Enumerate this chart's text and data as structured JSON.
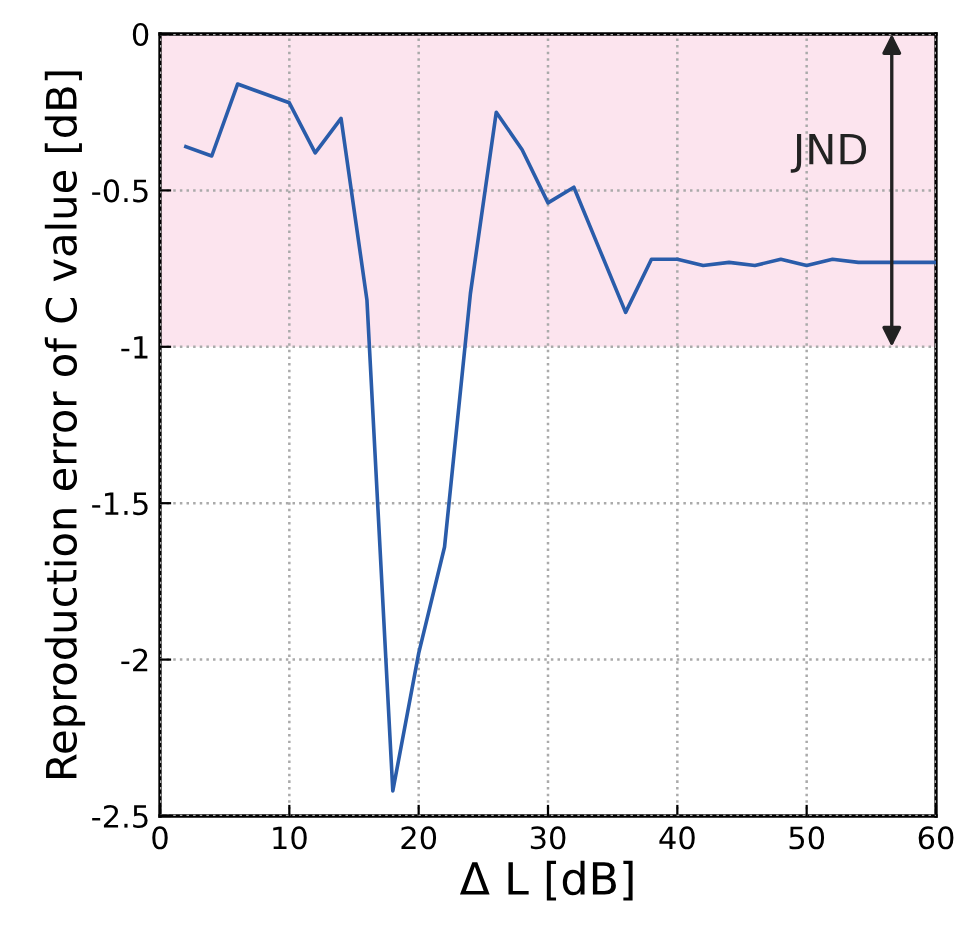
{
  "chart_data": {
    "type": "line",
    "xlabel": "Δ L [dB]",
    "ylabel": "Reproduction error of C value [dB]",
    "x": [
      2,
      4,
      6,
      10,
      12,
      14,
      16,
      18,
      20,
      22,
      24,
      26,
      28,
      30,
      32,
      34,
      36,
      38,
      40,
      42,
      44,
      46,
      48,
      50,
      52,
      54,
      56,
      58,
      60
    ],
    "series": [
      {
        "color": "#2a5caa",
        "values": [
          -0.36,
          -0.39,
          -0.16,
          -0.22,
          -0.38,
          -0.27,
          -0.85,
          -2.42,
          -1.98,
          -1.64,
          -0.83,
          -0.25,
          -0.37,
          -0.54,
          -0.49,
          -0.69,
          -0.89,
          -0.72,
          -0.72,
          -0.74,
          -0.73,
          -0.74,
          -0.72,
          -0.74,
          -0.72,
          -0.73,
          -0.73,
          -0.73,
          -0.73
        ]
      }
    ],
    "xlim": [
      0,
      60
    ],
    "xticks": [
      0,
      10,
      20,
      30,
      40,
      50,
      60
    ],
    "ylim": [
      -2.5,
      0
    ],
    "yticks": [
      -2.5,
      -2,
      -1.5,
      -1,
      -0.5,
      0
    ],
    "bands": [
      {
        "axis": "y",
        "from": -1,
        "to": 0,
        "label": "JND",
        "color": "#fce4ee"
      }
    ],
    "grid": true,
    "marker": "none",
    "line_style": "solid"
  }
}
